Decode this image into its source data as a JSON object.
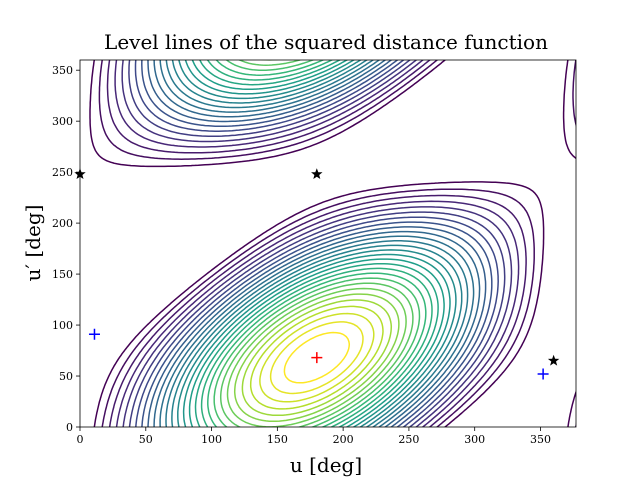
{
  "chart_data": {
    "type": "contour",
    "title": "Level lines of the squared distance function",
    "xlabel": "u [deg]",
    "ylabel": "u′ [deg]",
    "xlim": [
      0,
      377
    ],
    "ylim": [
      0,
      360
    ],
    "xticks": [
      "0",
      "50",
      "100",
      "150",
      "200",
      "250",
      "300",
      "350"
    ],
    "yticks": [
      "0",
      "50",
      "100",
      "150",
      "200",
      "250",
      "300",
      "350"
    ],
    "colormap": "viridis",
    "grid": false,
    "minimum_marker": {
      "x": 180,
      "y": 68,
      "color": "#ff0000",
      "symbol": "+"
    },
    "plus_markers": [
      {
        "x": 11,
        "y": 91,
        "color": "#0000ff",
        "symbol": "+"
      },
      {
        "x": 352,
        "y": 52,
        "color": "#0000ff",
        "symbol": "+"
      }
    ],
    "star_markers": [
      {
        "x": 0,
        "y": 248,
        "color": "#000000",
        "symbol": "star"
      },
      {
        "x": 180,
        "y": 248,
        "color": "#000000",
        "symbol": "star"
      },
      {
        "x": 360,
        "y": 65,
        "color": "#000000",
        "symbol": "star"
      }
    ]
  }
}
